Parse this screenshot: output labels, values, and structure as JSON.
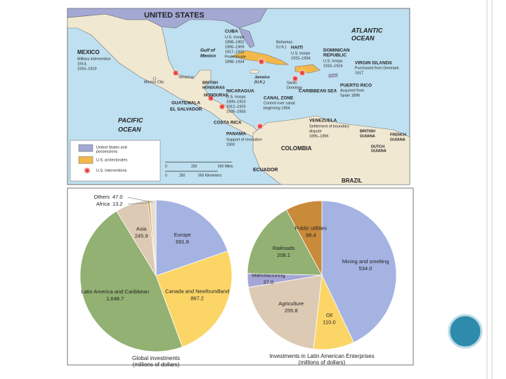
{
  "map": {
    "labels": [
      "UNITED STATES",
      "ATLANTIC",
      "OCEAN",
      "Gulf of",
      "Mexico",
      "CUBA",
      "U.S. troops",
      "1898–1902",
      "1906–1909",
      "1917–1922",
      "Protectorate",
      "1898–1934",
      "Bahamas",
      "(U.K.)",
      "HAITI",
      "U.S. troops",
      "1915–1934",
      "DOMINICAN",
      "REPUBLIC",
      "U.S. troops",
      "1916–1924",
      "VIRGIN ISLANDS",
      "Purchased from Denmark",
      "1917",
      "MEXICO",
      "Military intervention",
      "1914,",
      "1916–1919",
      "Veracruz",
      "Mexico City",
      "BRITISH",
      "HONDURAS",
      "HONDURAS",
      "Jamaica",
      "(U.K.)",
      "Santo",
      "Domingo",
      "CARIBBEAN SEA",
      "PUERTO RICO",
      "Acquired from",
      "Spain 1898",
      "GUATEMALA",
      "EL SALVADOR",
      "NICARAGUA",
      "U.S. troops",
      "1909–1910",
      "1912–1925",
      "1926–1933",
      "CANAL ZONE",
      "Control over canal",
      "beginning 1904",
      "COSTA RICA",
      "PANAMA",
      "Support of revolution",
      "1903",
      "VENEZUELA",
      "Settlement of boundary",
      "dispute",
      "1895–1896",
      "BRITISH",
      "GUIANA",
      "FRENCH",
      "GUIANA",
      "DUTCH",
      "GUIANA",
      "COLOMBIA",
      "ECUADOR",
      "BRAZIL",
      "PACIFIC",
      "OCEAN",
      "United States and",
      "possessions",
      "U.S. protectorates",
      "U.S. interventions",
      "0",
      "250",
      "500 Miles",
      "0",
      "250",
      "500 Kilometers"
    ]
  },
  "chart_data": [
    {
      "type": "pie",
      "title": "Global investments",
      "subtitle": "(millions of dollars)",
      "categories": [
        "Europe",
        "Canada and Newfoundland",
        "Latin America and Caribbean",
        "Asia",
        "Africa",
        "Others"
      ],
      "values": [
        691.8,
        867.2,
        1648.7,
        245.9,
        13.2,
        47.0
      ],
      "value_labels": [
        "691.8",
        "867.2",
        "1,648.7",
        "245.9",
        "13.2",
        "47.0"
      ],
      "colors": [
        "#a5b3e3",
        "#fcd567",
        "#92b172",
        "#dccab4",
        "#c98a3a",
        "#e6e0d4"
      ]
    },
    {
      "type": "pie",
      "title": "Investments in Latin American Enterprises",
      "subtitle": "(millions of dollars)",
      "categories": [
        "Mining and smelting",
        "Oil",
        "Agriculture",
        "Manufacturing",
        "Railroads",
        "Public utilities"
      ],
      "values": [
        534.0,
        110.0,
        255.8,
        37.0,
        208.1,
        98.4
      ],
      "value_labels": [
        "534.0",
        "110.0",
        "255.8",
        "37.0",
        "208.1",
        "98.4"
      ],
      "colors": [
        "#a5b3e3",
        "#fcd567",
        "#dccab4",
        "#a6a6d6",
        "#92b172",
        "#c98a3a"
      ]
    }
  ]
}
